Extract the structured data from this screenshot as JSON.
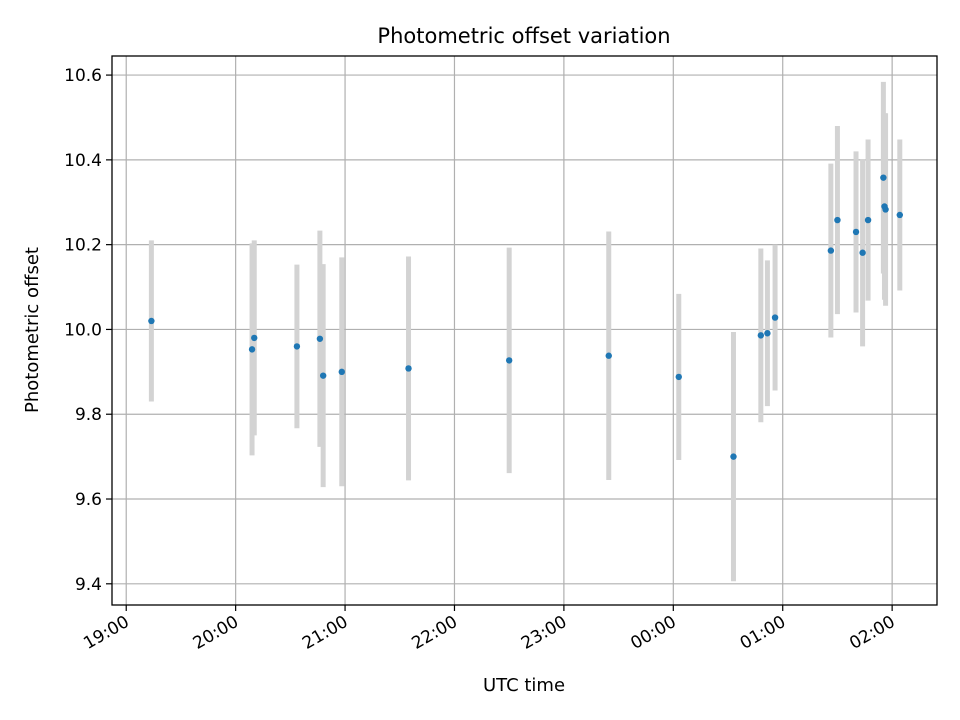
{
  "chart_data": {
    "type": "scatter",
    "title": "Photometric offset variation",
    "xlabel": "UTC time",
    "ylabel": "Photometric offset",
    "x_ticks": [
      "19:00",
      "20:00",
      "21:00",
      "22:00",
      "23:00",
      "00:00",
      "01:00",
      "02:00"
    ],
    "x_tick_positions": [
      19,
      20,
      21,
      22,
      23,
      24,
      25,
      26
    ],
    "xlim": [
      18.87,
      26.41
    ],
    "y_ticks": [
      "9.4",
      "9.6",
      "9.8",
      "10.0",
      "10.2",
      "10.4",
      "10.6"
    ],
    "y_tick_values": [
      9.4,
      9.6,
      9.8,
      10.0,
      10.2,
      10.4,
      10.6
    ],
    "ylim": [
      9.35,
      10.645
    ],
    "grid": true,
    "point_color": "#1f77b4",
    "errorbar_color": "#d3d3d3",
    "points": [
      {
        "x": 19.23,
        "y": 10.02,
        "err": 0.19
      },
      {
        "x": 20.15,
        "y": 9.953,
        "err": 0.25
      },
      {
        "x": 20.17,
        "y": 9.98,
        "err": 0.23
      },
      {
        "x": 20.56,
        "y": 9.96,
        "err": 0.193
      },
      {
        "x": 20.77,
        "y": 9.978,
        "err": 0.255
      },
      {
        "x": 20.8,
        "y": 9.891,
        "err": 0.263
      },
      {
        "x": 20.97,
        "y": 9.9,
        "err": 0.27
      },
      {
        "x": 21.58,
        "y": 9.908,
        "err": 0.264
      },
      {
        "x": 22.5,
        "y": 9.927,
        "err": 0.266
      },
      {
        "x": 23.41,
        "y": 9.938,
        "err": 0.293
      },
      {
        "x": 24.05,
        "y": 9.888,
        "err": 0.196
      },
      {
        "x": 24.55,
        "y": 9.7,
        "err": 0.294
      },
      {
        "x": 24.8,
        "y": 9.986,
        "err": 0.205
      },
      {
        "x": 24.86,
        "y": 9.991,
        "err": 0.172
      },
      {
        "x": 24.93,
        "y": 10.028,
        "err": 0.172
      },
      {
        "x": 25.44,
        "y": 10.186,
        "err": 0.205
      },
      {
        "x": 25.5,
        "y": 10.258,
        "err": 0.222
      },
      {
        "x": 25.67,
        "y": 10.23,
        "err": 0.19
      },
      {
        "x": 25.73,
        "y": 10.181,
        "err": 0.221
      },
      {
        "x": 25.78,
        "y": 10.258,
        "err": 0.19
      },
      {
        "x": 25.92,
        "y": 10.358,
        "err": 0.226
      },
      {
        "x": 25.93,
        "y": 10.29,
        "err": 0.22
      },
      {
        "x": 25.94,
        "y": 10.283,
        "err": 0.227
      },
      {
        "x": 26.07,
        "y": 10.27,
        "err": 0.178
      }
    ]
  }
}
